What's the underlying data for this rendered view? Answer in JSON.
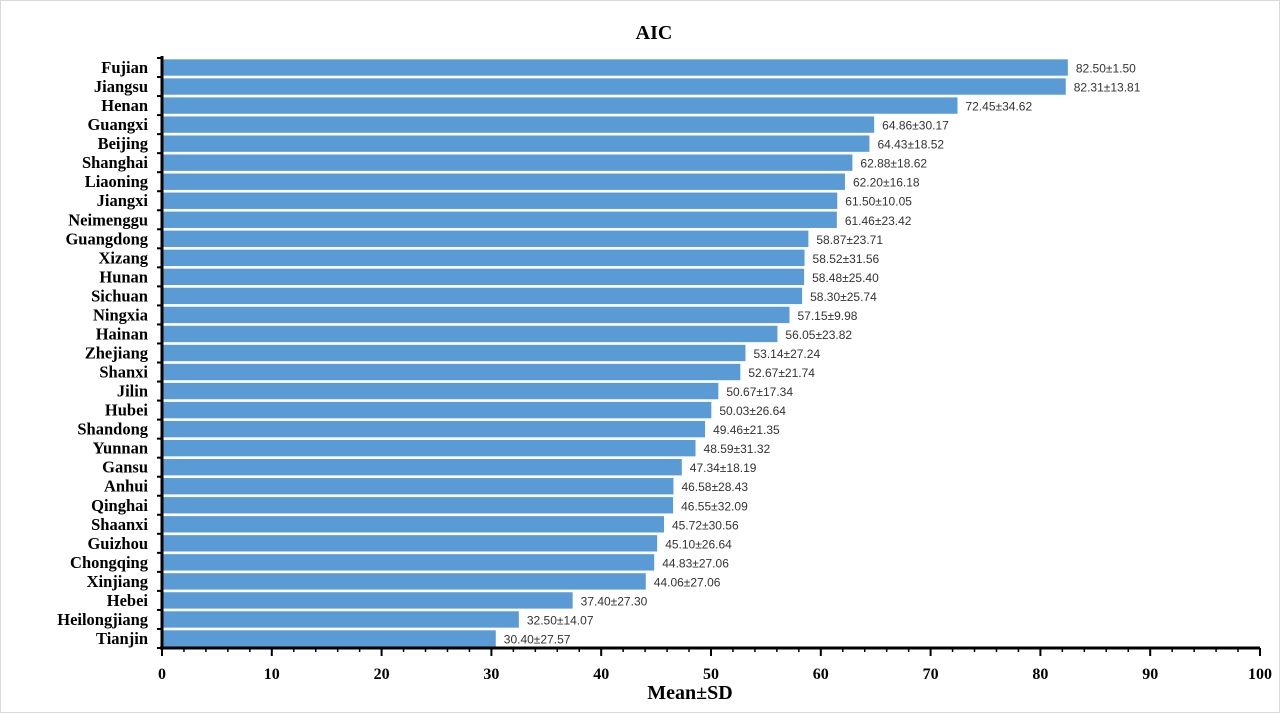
{
  "chart_data": {
    "type": "bar",
    "orientation": "horizontal",
    "title": "AIC",
    "xlabel": "Mean±SD",
    "ylabel": "",
    "xlim": [
      0,
      100
    ],
    "xticks": [
      0,
      10,
      20,
      30,
      40,
      50,
      60,
      70,
      80,
      90,
      100
    ],
    "grid": false,
    "bar_color": "#5B9BD5",
    "categories": [
      "Fujian",
      "Jiangsu",
      "Henan",
      "Guangxi",
      "Beijing",
      "Shanghai",
      "Liaoning",
      "Jiangxi",
      "Neimenggu",
      "Guangdong",
      "Xizang",
      "Hunan",
      "Sichuan",
      "Ningxia",
      "Hainan",
      "Zhejiang",
      "Shanxi",
      "Jilin",
      "Hubei",
      "Shandong",
      "Yunnan",
      "Gansu",
      "Anhui",
      "Qinghai",
      "Shaanxi",
      "Guizhou",
      "Chongqing",
      "Xinjiang",
      "Hebei",
      "Heilongjiang",
      "Tianjin"
    ],
    "values": [
      82.5,
      82.31,
      72.45,
      64.86,
      64.43,
      62.88,
      62.2,
      61.5,
      61.46,
      58.87,
      58.52,
      58.48,
      58.3,
      57.15,
      56.05,
      53.14,
      52.67,
      50.67,
      50.03,
      49.46,
      48.59,
      47.34,
      46.58,
      46.55,
      45.72,
      45.1,
      44.83,
      44.06,
      37.4,
      32.5,
      30.4
    ],
    "data_labels": [
      "82.50±1.50",
      "82.31±13.81",
      "72.45±34.62",
      "64.86±30.17",
      "64.43±18.52",
      "62.88±18.62",
      "62.20±16.18",
      "61.50±10.05",
      "61.46±23.42",
      "58.87±23.71",
      "58.52±31.56",
      "58.48±25.40",
      "58.30±25.74",
      "57.15±9.98",
      "56.05±23.82",
      "53.14±27.24",
      "52.67±21.74",
      "50.67±17.34",
      "50.03±26.64",
      "49.46±21.35",
      "48.59±31.32",
      "47.34±18.19",
      "46.58±28.43",
      "46.55±32.09",
      "45.72±30.56",
      "45.10±26.64",
      "44.83±27.06",
      "44.06±27.06",
      "37.40±27.30",
      "32.50±14.07",
      "30.40±27.57"
    ]
  }
}
